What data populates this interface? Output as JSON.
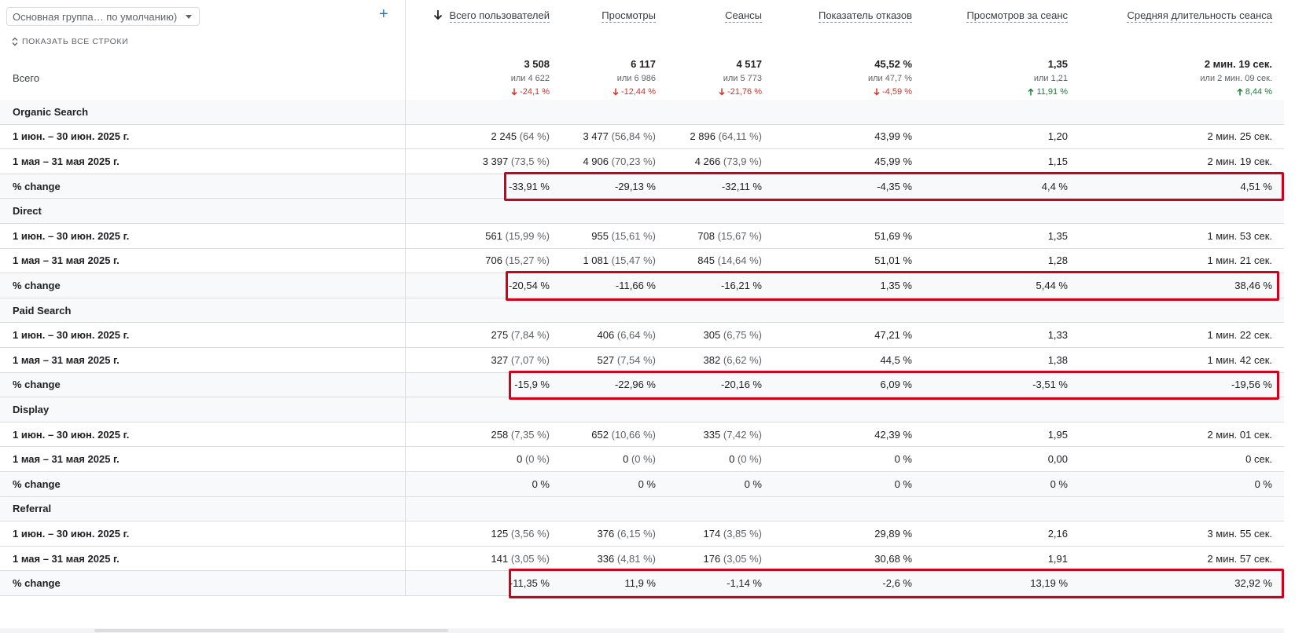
{
  "dimension_selector": {
    "label": "Основная группа… по умолчанию)"
  },
  "add_button": "+",
  "show_all_rows": "ПОКАЗАТЬ ВСЕ СТРОКИ",
  "total_label": "Всего",
  "columns": [
    {
      "title": "Всего пользователей",
      "sorted": true
    },
    {
      "title": "Просмотры"
    },
    {
      "title": "Сеансы"
    },
    {
      "title": "Показатель отказов"
    },
    {
      "title": "Просмотров за сеанс"
    },
    {
      "title": "Средняя длительность сеанса"
    }
  ],
  "totals": [
    {
      "value": "3 508",
      "prev": "или 4 622",
      "delta": "-24,1 %",
      "dir": "down"
    },
    {
      "value": "6 117",
      "prev": "или 6 986",
      "delta": "-12,44 %",
      "dir": "down"
    },
    {
      "value": "4 517",
      "prev": "или 5 773",
      "delta": "-21,76 %",
      "dir": "down"
    },
    {
      "value": "45,52 %",
      "prev": "или 47,7 %",
      "delta": "-4,59 %",
      "dir": "down"
    },
    {
      "value": "1,35",
      "prev": "или 1,21",
      "delta": "11,91 %",
      "dir": "up"
    },
    {
      "value": "2 мин. 19 сек.",
      "prev": "или 2 мин. 09 сек.",
      "delta": "8,44 %",
      "dir": "up"
    }
  ],
  "groups": [
    {
      "name": "Organic Search",
      "rows": [
        {
          "label": "1 июн. – 30 июн. 2025 г.",
          "cells": [
            [
              "2 245",
              "(64 %)"
            ],
            [
              "3 477",
              "(56,84 %)"
            ],
            [
              "2 896",
              "(64,11 %)"
            ],
            [
              "43,99 %",
              ""
            ],
            [
              "1,20",
              ""
            ],
            [
              "2 мин. 25 сек.",
              ""
            ]
          ]
        },
        {
          "label": "1 мая – 31 мая 2025 г.",
          "cells": [
            [
              "3 397",
              "(73,5 %)"
            ],
            [
              "4 906",
              "(70,23 %)"
            ],
            [
              "4 266",
              "(73,9 %)"
            ],
            [
              "45,99 %",
              ""
            ],
            [
              "1,15",
              ""
            ],
            [
              "2 мин. 19 сек.",
              ""
            ]
          ]
        },
        {
          "label": "% change",
          "cells": [
            [
              "-33,91 %",
              ""
            ],
            [
              "-29,13 %",
              ""
            ],
            [
              "-32,11 %",
              ""
            ],
            [
              "-4,35 %",
              ""
            ],
            [
              "4,4 %",
              ""
            ],
            [
              "4,51 %",
              ""
            ]
          ]
        }
      ]
    },
    {
      "name": "Direct",
      "rows": [
        {
          "label": "1 июн. – 30 июн. 2025 г.",
          "cells": [
            [
              "561",
              "(15,99 %)"
            ],
            [
              "955",
              "(15,61 %)"
            ],
            [
              "708",
              "(15,67 %)"
            ],
            [
              "51,69 %",
              ""
            ],
            [
              "1,35",
              ""
            ],
            [
              "1 мин. 53 сек.",
              ""
            ]
          ]
        },
        {
          "label": "1 мая – 31 мая 2025 г.",
          "cells": [
            [
              "706",
              "(15,27 %)"
            ],
            [
              "1 081",
              "(15,47 %)"
            ],
            [
              "845",
              "(14,64 %)"
            ],
            [
              "51,01 %",
              ""
            ],
            [
              "1,28",
              ""
            ],
            [
              "1 мин. 21 сек.",
              ""
            ]
          ]
        },
        {
          "label": "% change",
          "cells": [
            [
              "-20,54 %",
              ""
            ],
            [
              "-11,66 %",
              ""
            ],
            [
              "-16,21 %",
              ""
            ],
            [
              "1,35 %",
              ""
            ],
            [
              "5,44 %",
              ""
            ],
            [
              "38,46 %",
              ""
            ]
          ]
        }
      ]
    },
    {
      "name": "Paid Search",
      "rows": [
        {
          "label": "1 июн. – 30 июн. 2025 г.",
          "cells": [
            [
              "275",
              "(7,84 %)"
            ],
            [
              "406",
              "(6,64 %)"
            ],
            [
              "305",
              "(6,75 %)"
            ],
            [
              "47,21 %",
              ""
            ],
            [
              "1,33",
              ""
            ],
            [
              "1 мин. 22 сек.",
              ""
            ]
          ]
        },
        {
          "label": "1 мая – 31 мая 2025 г.",
          "cells": [
            [
              "327",
              "(7,07 %)"
            ],
            [
              "527",
              "(7,54 %)"
            ],
            [
              "382",
              "(6,62 %)"
            ],
            [
              "44,5 %",
              ""
            ],
            [
              "1,38",
              ""
            ],
            [
              "1 мин. 42 сек.",
              ""
            ]
          ]
        },
        {
          "label": "% change",
          "cells": [
            [
              "-15,9 %",
              ""
            ],
            [
              "-22,96 %",
              ""
            ],
            [
              "-20,16 %",
              ""
            ],
            [
              "6,09 %",
              ""
            ],
            [
              "-3,51 %",
              ""
            ],
            [
              "-19,56 %",
              ""
            ]
          ]
        }
      ]
    },
    {
      "name": "Display",
      "rows": [
        {
          "label": "1 июн. – 30 июн. 2025 г.",
          "cells": [
            [
              "258",
              "(7,35 %)"
            ],
            [
              "652",
              "(10,66 %)"
            ],
            [
              "335",
              "(7,42 %)"
            ],
            [
              "42,39 %",
              ""
            ],
            [
              "1,95",
              ""
            ],
            [
              "2 мин. 01 сек.",
              ""
            ]
          ]
        },
        {
          "label": "1 мая – 31 мая 2025 г.",
          "cells": [
            [
              "0",
              "(0 %)"
            ],
            [
              "0",
              "(0 %)"
            ],
            [
              "0",
              "(0 %)"
            ],
            [
              "0 %",
              ""
            ],
            [
              "0,00",
              ""
            ],
            [
              "0 сек.",
              ""
            ]
          ]
        },
        {
          "label": "% change",
          "cells": [
            [
              "0 %",
              ""
            ],
            [
              "0 %",
              ""
            ],
            [
              "0 %",
              ""
            ],
            [
              "0 %",
              ""
            ],
            [
              "0 %",
              ""
            ],
            [
              "0 %",
              ""
            ]
          ]
        }
      ]
    },
    {
      "name": "Referral",
      "rows": [
        {
          "label": "1 июн. – 30 июн. 2025 г.",
          "cells": [
            [
              "125",
              "(3,56 %)"
            ],
            [
              "376",
              "(6,15 %)"
            ],
            [
              "174",
              "(3,85 %)"
            ],
            [
              "29,89 %",
              ""
            ],
            [
              "2,16",
              ""
            ],
            [
              "3 мин. 55 сек.",
              ""
            ]
          ]
        },
        {
          "label": "1 мая – 31 мая 2025 г.",
          "cells": [
            [
              "141",
              "(3,05 %)"
            ],
            [
              "336",
              "(4,81 %)"
            ],
            [
              "176",
              "(3,05 %)"
            ],
            [
              "30,68 %",
              ""
            ],
            [
              "1,91",
              ""
            ],
            [
              "2 мин. 57 сек.",
              ""
            ]
          ]
        },
        {
          "label": "% change",
          "cells": [
            [
              "-11,35 %",
              ""
            ],
            [
              "11,9 %",
              ""
            ],
            [
              "-1,14 %",
              ""
            ],
            [
              "-2,6 %",
              ""
            ],
            [
              "13,19 %",
              ""
            ],
            [
              "32,92 %",
              ""
            ]
          ]
        }
      ]
    }
  ],
  "highlighted_groups": [
    "Organic Search",
    "Direct",
    "Paid Search",
    "Referral"
  ],
  "colors": {
    "negative": "#d93025",
    "positive": "#188038",
    "highlight": "#d0021b",
    "accent": "#1a73e8"
  }
}
